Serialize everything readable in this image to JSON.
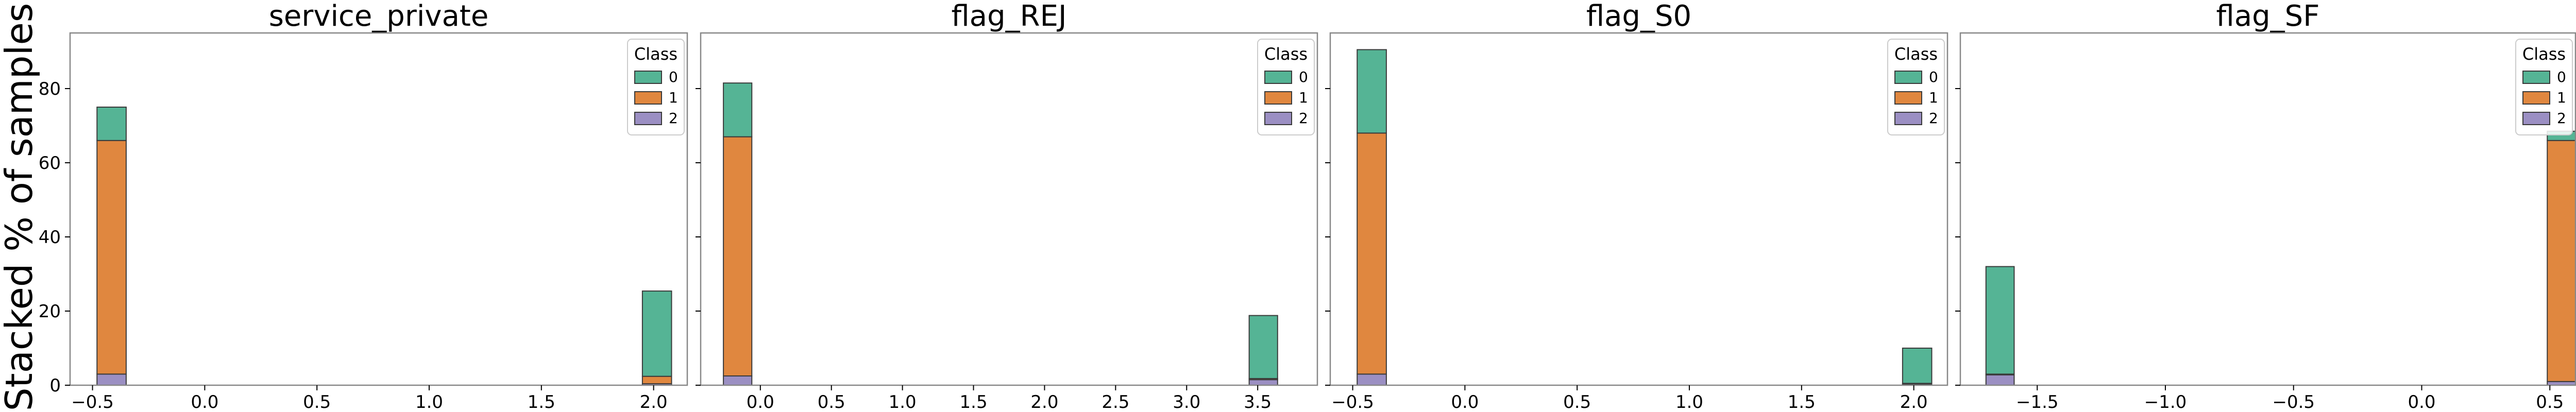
{
  "figure": {
    "ylabel": "Stacked % of samples",
    "legend_title": "Class",
    "class_labels": [
      "0",
      "1",
      "2"
    ],
    "colors": {
      "0": "#55b495",
      "1": "#e0873f",
      "2": "#9b8fc3"
    },
    "bar_edge": "#3a3a3a"
  },
  "chart_data": [
    {
      "type": "bar",
      "title": "service_private",
      "xlim": [
        -0.6,
        2.15
      ],
      "ylim": [
        0,
        95
      ],
      "xticks": [
        -0.5,
        0.0,
        0.5,
        1.0,
        1.5,
        2.0
      ],
      "xtick_labels": [
        "−0.5",
        "0.0",
        "0.5",
        "1.0",
        "1.5",
        "2.0"
      ],
      "yticks": [
        0,
        20,
        40,
        60,
        80
      ],
      "ytick_labels": [
        "0",
        "20",
        "40",
        "60",
        "80"
      ],
      "legend": "top-right",
      "bins": [
        {
          "x0": -0.48,
          "x1": -0.35,
          "values": {
            "2": 3.0,
            "1": 63.0,
            "0": 9.0
          }
        },
        {
          "x0": 1.95,
          "x1": 2.08,
          "values": {
            "2": 0.4,
            "1": 2.0,
            "0": 23.0
          }
        }
      ]
    },
    {
      "type": "bar",
      "title": "flag_REJ",
      "xlim": [
        -0.42,
        3.92
      ],
      "ylim": [
        0,
        95
      ],
      "xticks": [
        0.0,
        0.5,
        1.0,
        1.5,
        2.0,
        2.5,
        3.0,
        3.5
      ],
      "xtick_labels": [
        "0.0",
        "0.5",
        "1.0",
        "1.5",
        "2.0",
        "2.5",
        "3.0",
        "3.5"
      ],
      "yticks": [
        0,
        20,
        40,
        60,
        80
      ],
      "ytick_labels": [],
      "legend": "top-right",
      "bins": [
        {
          "x0": -0.26,
          "x1": -0.06,
          "values": {
            "2": 2.5,
            "1": 64.5,
            "0": 14.5
          }
        },
        {
          "x0": 3.44,
          "x1": 3.64,
          "values": {
            "2": 1.5,
            "1": 0.3,
            "0": 17.0
          }
        }
      ]
    },
    {
      "type": "bar",
      "title": "flag_S0",
      "xlim": [
        -0.6,
        2.15
      ],
      "ylim": [
        0,
        95
      ],
      "xticks": [
        -0.5,
        0.0,
        0.5,
        1.0,
        1.5,
        2.0
      ],
      "xtick_labels": [
        "−0.5",
        "0.0",
        "0.5",
        "1.0",
        "1.5",
        "2.0"
      ],
      "yticks": [
        0,
        20,
        40,
        60,
        80
      ],
      "ytick_labels": [],
      "legend": "top-right",
      "bins": [
        {
          "x0": -0.48,
          "x1": -0.35,
          "values": {
            "2": 3.0,
            "1": 65.0,
            "0": 22.5
          }
        },
        {
          "x0": 1.95,
          "x1": 2.08,
          "values": {
            "2": 0.3,
            "1": 0.2,
            "0": 9.5
          }
        }
      ]
    },
    {
      "type": "bar",
      "title": "flag_SF",
      "xlim": [
        -1.8,
        0.6
      ],
      "ylim": [
        0,
        95
      ],
      "xticks": [
        -1.5,
        -1.0,
        -0.5,
        0.0,
        0.5
      ],
      "xtick_labels": [
        "−1.5",
        "−1.0",
        "−0.5",
        "0.0",
        "0.5"
      ],
      "yticks": [
        0,
        20,
        40,
        60,
        80
      ],
      "ytick_labels": [],
      "legend": "top-right",
      "bins": [
        {
          "x0": -1.7,
          "x1": -1.59,
          "values": {
            "2": 2.8,
            "1": 0.2,
            "0": 29.0
          }
        },
        {
          "x0": 0.49,
          "x1": 0.6,
          "values": {
            "2": 1.0,
            "1": 65.0,
            "0": 2.5
          }
        }
      ]
    }
  ]
}
